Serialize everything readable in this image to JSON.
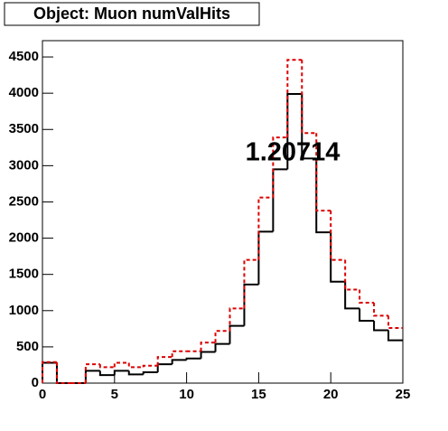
{
  "chart_data": {
    "type": "histogram",
    "title": "Object: Muon numValHits",
    "annotation": "1.20714",
    "bins": [
      0,
      1,
      2,
      3,
      4,
      5,
      6,
      7,
      8,
      9,
      10,
      11,
      12,
      13,
      14,
      15,
      16,
      17,
      18,
      19,
      20,
      21,
      22,
      23,
      24,
      25
    ],
    "series": [
      {
        "color": "#000000",
        "line_style": "solid",
        "values": [
          280,
          0,
          0,
          170,
          110,
          170,
          120,
          150,
          260,
          320,
          340,
          430,
          540,
          790,
          1360,
          2090,
          2950,
          3990,
          3100,
          2080,
          1400,
          1030,
          860,
          730,
          590
        ]
      },
      {
        "color": "#dd0000",
        "line_style": "dashed",
        "values": [
          290,
          0,
          0,
          260,
          220,
          280,
          220,
          240,
          360,
          440,
          440,
          560,
          720,
          1030,
          1700,
          2560,
          3390,
          4460,
          3450,
          2380,
          1700,
          1290,
          1110,
          930,
          760
        ]
      }
    ],
    "xlim": [
      0,
      25
    ],
    "xticks": [
      0,
      5,
      10,
      15,
      20,
      25
    ],
    "ylim": [
      0,
      4725
    ],
    "yticks": [
      0,
      500,
      1000,
      1500,
      2000,
      2500,
      3000,
      3500,
      4000,
      4500
    ]
  }
}
